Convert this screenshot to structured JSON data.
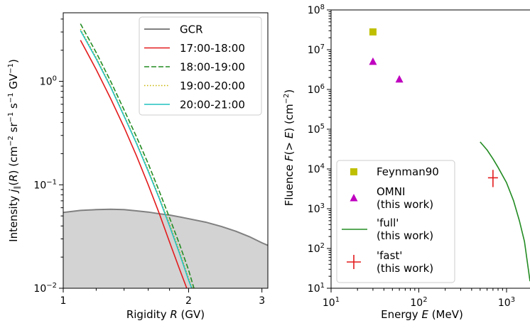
{
  "chart_data": [
    {
      "type": "line",
      "title": "",
      "xlabel_parts": [
        "Rigidity ",
        "R",
        " (GV)"
      ],
      "ylabel_parts": [
        "Intensity ",
        "j",
        "∥",
        "(",
        "R",
        ") (cm",
        "−2",
        " sr",
        "−1",
        " s",
        "−1",
        " GV",
        "−1",
        ")"
      ],
      "xscale": "log",
      "yscale": "log",
      "xlim": [
        1,
        3.1
      ],
      "ylim": [
        0.01,
        4.6
      ],
      "xticks": [
        {
          "value": 1,
          "label": "1"
        },
        {
          "value": 2,
          "label": "2"
        },
        {
          "value": 3,
          "label": "3"
        }
      ],
      "yticks": [
        {
          "value": 0.01,
          "base": "10",
          "exp": "−2"
        },
        {
          "value": 0.1,
          "base": "10",
          "exp": "−1"
        },
        {
          "value": 1,
          "base": "10",
          "exp": "0"
        }
      ],
      "legend_placement": "top-right",
      "series": [
        {
          "name": "GCR",
          "color": "#808080",
          "dash": "solid",
          "fill": "#d3d3d3",
          "x": [
            1.0,
            1.1,
            1.2,
            1.3,
            1.4,
            1.5,
            1.6,
            1.7,
            1.8,
            1.9,
            2.0,
            2.2,
            2.4,
            2.6,
            2.8,
            3.0,
            3.1
          ],
          "y": [
            0.054,
            0.0565,
            0.0575,
            0.058,
            0.0575,
            0.056,
            0.0545,
            0.0525,
            0.051,
            0.049,
            0.047,
            0.0435,
            0.0395,
            0.0355,
            0.0315,
            0.0275,
            0.026
          ]
        },
        {
          "name": "17:00-18:00",
          "color": "#e31a1c",
          "dash": "solid",
          "x": [
            1.1,
            1.2,
            1.3,
            1.4,
            1.5,
            1.6,
            1.7,
            1.8,
            1.9,
            1.98
          ],
          "y": [
            2.5,
            1.3,
            0.68,
            0.36,
            0.19,
            0.1,
            0.053,
            0.028,
            0.0155,
            0.01
          ]
        },
        {
          "name": "18:00-19:00",
          "color": "#228b22",
          "dash": "dashed",
          "x": [
            1.1,
            1.2,
            1.3,
            1.4,
            1.5,
            1.6,
            1.7,
            1.8,
            1.9,
            2.0,
            2.06
          ],
          "y": [
            3.6,
            1.9,
            1.0,
            0.53,
            0.29,
            0.16,
            0.087,
            0.048,
            0.027,
            0.015,
            0.01
          ]
        },
        {
          "name": "19:00-20:00",
          "color": "#c8b400",
          "dash": "dotted",
          "x": [
            1.1,
            1.2,
            1.3,
            1.4,
            1.5,
            1.6,
            1.7,
            1.8,
            1.9,
            2.0,
            2.04
          ],
          "y": [
            3.2,
            1.7,
            0.9,
            0.47,
            0.255,
            0.14,
            0.076,
            0.042,
            0.023,
            0.0125,
            0.01
          ]
        },
        {
          "name": "20:00-21:00",
          "color": "#20c0c0",
          "dash": "solid",
          "x": [
            1.1,
            1.2,
            1.3,
            1.4,
            1.5,
            1.6,
            1.7,
            1.8,
            1.9,
            2.0,
            2.035
          ],
          "y": [
            3.1,
            1.65,
            0.88,
            0.46,
            0.25,
            0.135,
            0.074,
            0.04,
            0.022,
            0.012,
            0.01
          ]
        }
      ]
    },
    {
      "type": "scatter",
      "title": "",
      "xlabel_parts": [
        "Energy ",
        "E",
        " (MeV)"
      ],
      "ylabel_parts": [
        "Fluence ",
        "F",
        "(> ",
        "E",
        ") (cm",
        "−2",
        ")"
      ],
      "xscale": "log",
      "yscale": "log",
      "xlim": [
        10,
        1850
      ],
      "ylim": [
        10,
        100000000
      ],
      "xticks": [
        {
          "value": 10,
          "base": "10",
          "exp": "1"
        },
        {
          "value": 100,
          "base": "10",
          "exp": "2"
        },
        {
          "value": 1000,
          "base": "10",
          "exp": "3"
        }
      ],
      "yticks": [
        {
          "value": 10,
          "base": "10",
          "exp": "1"
        },
        {
          "value": 100,
          "base": "10",
          "exp": "2"
        },
        {
          "value": 1000,
          "base": "10",
          "exp": "3"
        },
        {
          "value": 10000,
          "base": "10",
          "exp": "4"
        },
        {
          "value": 100000,
          "base": "10",
          "exp": "5"
        },
        {
          "value": 1000000,
          "base": "10",
          "exp": "6"
        },
        {
          "value": 10000000,
          "base": "10",
          "exp": "7"
        },
        {
          "value": 100000000,
          "base": "10",
          "exp": "8"
        }
      ],
      "legend_placement": "bottom-left",
      "series": [
        {
          "name": "Feynman90",
          "color": "#bfbf00",
          "marker": "square",
          "points": [
            {
              "x": 30,
              "y": 28000000
            }
          ]
        },
        {
          "name_lines": [
            "OMNI",
            "(this work)"
          ],
          "color": "#bf00bf",
          "marker": "triangle",
          "points": [
            {
              "x": 30,
              "y": 5000000
            },
            {
              "x": 60,
              "y": 1800000
            }
          ]
        },
        {
          "name_lines": [
            "'full'",
            "(this work)"
          ],
          "color": "#228b22",
          "marker": "line",
          "x": [
            500,
            600,
            700,
            800,
            1000,
            1200,
            1400,
            1600,
            1850
          ],
          "y": [
            48000,
            30000,
            18000,
            11000,
            4500,
            1600,
            500,
            150,
            15
          ]
        },
        {
          "name_lines": [
            "'fast'",
            "(this work)"
          ],
          "color": "#e31a1c",
          "marker": "errorbar",
          "points": [
            {
              "x": 700,
              "y": 6000,
              "ylow": 3500,
              "yhigh": 9500
            }
          ]
        }
      ]
    }
  ]
}
